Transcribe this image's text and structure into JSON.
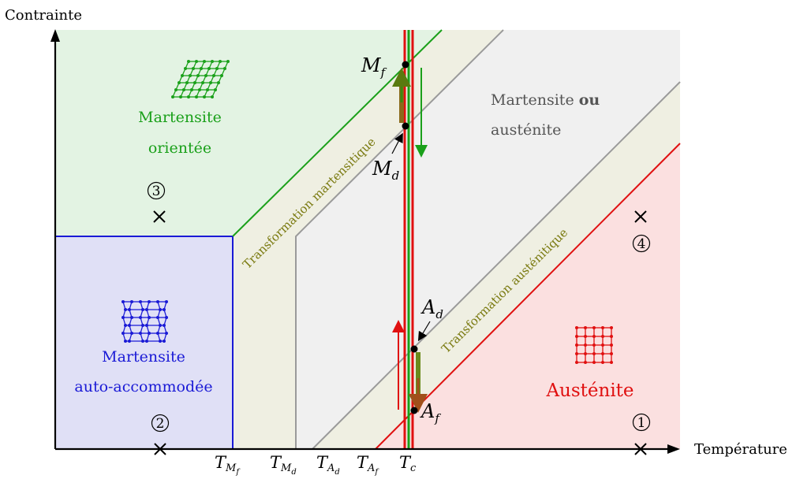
{
  "axes": {
    "y_label": "Contrainte",
    "x_label": "Température"
  },
  "x_ticks": [
    {
      "main": "T",
      "sub": "M",
      "subsub": "f"
    },
    {
      "main": "T",
      "sub": "M",
      "subsub": "d"
    },
    {
      "main": "T",
      "sub": "A",
      "subsub": "d"
    },
    {
      "main": "T",
      "sub": "A",
      "subsub": "f"
    },
    {
      "main": "T",
      "sub": "c",
      "subsub": ""
    }
  ],
  "regions": {
    "oriented": {
      "line1": "Martensite",
      "line2": "orientée",
      "color": "#1aa01a"
    },
    "self_accommodated": {
      "line1": "Martensite",
      "line2": "auto-accommodée",
      "color": "#1a1ad6"
    },
    "either": {
      "line1_a": "Martensite ",
      "line1_b": "ou",
      "line2": "austénite",
      "color": "#555555"
    },
    "austenite": {
      "label": "Austénite",
      "color": "#e01010"
    }
  },
  "bands": {
    "martensitic": "Transformation martensitique",
    "austenitic": "Transformation austénitique",
    "color": "#7a7a10"
  },
  "points": {
    "Mf": {
      "main": "M",
      "sub": "f"
    },
    "Md": {
      "main": "M",
      "sub": "d"
    },
    "Ad": {
      "main": "A",
      "sub": "d"
    },
    "Af": {
      "main": "A",
      "sub": "f"
    }
  },
  "states": [
    {
      "num": "1"
    },
    {
      "num": "2"
    },
    {
      "num": "3"
    },
    {
      "num": "4"
    }
  ],
  "colors": {
    "oriented_fill": "#e3f3e3",
    "self_fill": "#e0e0f6",
    "band_fill": "#efefe2",
    "either_fill": "#f0f0f0",
    "austenite_fill": "#fbe0e0",
    "green": "#1aa01a",
    "red": "#e01010",
    "blue": "#1a1ad6",
    "gray": "#9a9a9a"
  }
}
